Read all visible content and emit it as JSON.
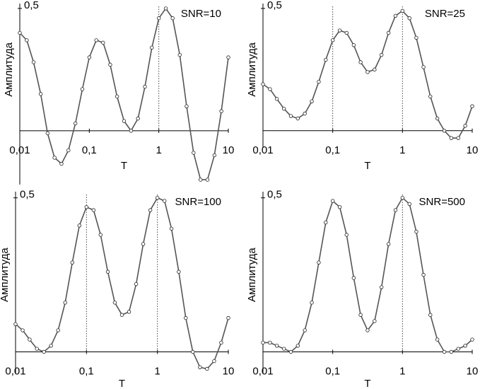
{
  "chart_data": [
    {
      "type": "line",
      "annotation": "SNR=10",
      "xlabel": "Т",
      "ylabel": "Амплитуда",
      "xscale": "log",
      "color": "#555555",
      "x": [
        0.01,
        0.0126,
        0.0158,
        0.02,
        0.0251,
        0.0316,
        0.0398,
        0.0501,
        0.0631,
        0.0794,
        0.1,
        0.126,
        0.158,
        0.2,
        0.251,
        0.316,
        0.398,
        0.501,
        0.631,
        0.794,
        1,
        1.26,
        1.58,
        2,
        2.51,
        3.16,
        3.98,
        5.01,
        6.31,
        7.94,
        10
      ],
      "values": [
        0.4,
        0.37,
        0.28,
        0.15,
        -0.01,
        -0.11,
        -0.135,
        -0.08,
        0.03,
        0.17,
        0.3,
        0.37,
        0.36,
        0.27,
        0.14,
        0.04,
        0.0,
        0.05,
        0.18,
        0.34,
        0.46,
        0.5,
        0.46,
        0.31,
        0.1,
        -0.09,
        -0.2,
        -0.2,
        -0.1,
        0.08,
        0.3
      ],
      "xlim": [
        0.01,
        10
      ],
      "xticks": [
        {
          "value": 0.01,
          "label": "0,01"
        },
        {
          "value": 0.1,
          "label": "0,1"
        },
        1,
        10
      ],
      "ylim": [
        -0.22,
        0.52
      ],
      "yticks": [
        {
          "value": 0.5,
          "label": "0,5"
        }
      ],
      "vlines": [
        1
      ]
    },
    {
      "type": "line",
      "annotation": "SNR=25",
      "xlabel": "Т",
      "ylabel": "Амплитуда",
      "xscale": "log",
      "color": "#555555",
      "x": [
        0.01,
        0.0126,
        0.0158,
        0.02,
        0.0251,
        0.0316,
        0.0398,
        0.0501,
        0.0631,
        0.0794,
        0.1,
        0.126,
        0.158,
        0.2,
        0.251,
        0.316,
        0.398,
        0.501,
        0.631,
        0.794,
        1,
        1.26,
        1.58,
        2,
        2.51,
        3.16,
        3.98,
        5.01,
        6.31,
        7.94,
        10
      ],
      "values": [
        0.19,
        0.17,
        0.13,
        0.09,
        0.06,
        0.05,
        0.07,
        0.12,
        0.2,
        0.29,
        0.37,
        0.41,
        0.4,
        0.35,
        0.28,
        0.24,
        0.25,
        0.31,
        0.4,
        0.47,
        0.49,
        0.46,
        0.38,
        0.26,
        0.14,
        0.05,
        0.0,
        -0.03,
        -0.03,
        0.02,
        0.1
      ],
      "xlim": [
        0.01,
        10
      ],
      "xticks": [
        {
          "value": 0.01,
          "label": "0,01"
        },
        {
          "value": 0.1,
          "label": "0,1"
        },
        1,
        10
      ],
      "ylim": [
        -0.07,
        0.52
      ],
      "yticks": [
        {
          "value": 0.5,
          "label": "0,5"
        }
      ],
      "vlines": [
        0.1,
        1
      ]
    },
    {
      "type": "line",
      "annotation": "SNR=100",
      "xlabel": "Т",
      "ylabel": "Амплитуда",
      "xscale": "log",
      "color": "#555555",
      "x": [
        0.01,
        0.0126,
        0.0158,
        0.02,
        0.0251,
        0.0316,
        0.0398,
        0.0501,
        0.0631,
        0.0794,
        0.1,
        0.126,
        0.158,
        0.2,
        0.251,
        0.316,
        0.398,
        0.501,
        0.631,
        0.794,
        1,
        1.26,
        1.58,
        2,
        2.51,
        3.16,
        3.98,
        5.01,
        6.31,
        7.94,
        10
      ],
      "values": [
        0.09,
        0.07,
        0.04,
        0.01,
        0.0,
        0.02,
        0.07,
        0.16,
        0.29,
        0.41,
        0.47,
        0.46,
        0.38,
        0.26,
        0.16,
        0.12,
        0.13,
        0.22,
        0.35,
        0.46,
        0.5,
        0.49,
        0.4,
        0.26,
        0.11,
        0.0,
        -0.05,
        -0.055,
        -0.03,
        0.03,
        0.11
      ],
      "xlim": [
        0.01,
        10
      ],
      "xticks": [
        {
          "value": 0.01,
          "label": "0,01"
        },
        {
          "value": 0.1,
          "label": "0,1"
        },
        1,
        10
      ],
      "ylim": [
        -0.07,
        0.52
      ],
      "yticks": [
        {
          "value": 0.5,
          "label": "0,5"
        }
      ],
      "vlines": [
        0.1,
        1
      ]
    },
    {
      "type": "line",
      "annotation": "SNR=500",
      "xlabel": "Т",
      "ylabel": "Амплитуда",
      "xscale": "log",
      "color": "#555555",
      "x": [
        0.01,
        0.0126,
        0.0158,
        0.02,
        0.0251,
        0.0316,
        0.0398,
        0.0501,
        0.0631,
        0.0794,
        0.1,
        0.126,
        0.158,
        0.2,
        0.251,
        0.316,
        0.398,
        0.501,
        0.631,
        0.794,
        1,
        1.26,
        1.58,
        2,
        2.51,
        3.16,
        3.98,
        5.01,
        6.31,
        7.94,
        10
      ],
      "values": [
        0.03,
        0.03,
        0.02,
        0.01,
        0.0,
        0.02,
        0.07,
        0.16,
        0.29,
        0.42,
        0.49,
        0.47,
        0.38,
        0.24,
        0.12,
        0.07,
        0.1,
        0.21,
        0.35,
        0.46,
        0.5,
        0.48,
        0.39,
        0.25,
        0.12,
        0.04,
        0.0,
        0.0,
        0.01,
        0.02,
        0.04
      ],
      "xlim": [
        0.01,
        10
      ],
      "xticks": [
        {
          "value": 0.01,
          "label": "0,01"
        },
        {
          "value": 0.1,
          "label": "0,1"
        },
        1,
        10
      ],
      "ylim": [
        -0.07,
        0.52
      ],
      "yticks": [
        {
          "value": 0.5,
          "label": "0,5"
        }
      ],
      "vlines": [
        1
      ]
    }
  ]
}
